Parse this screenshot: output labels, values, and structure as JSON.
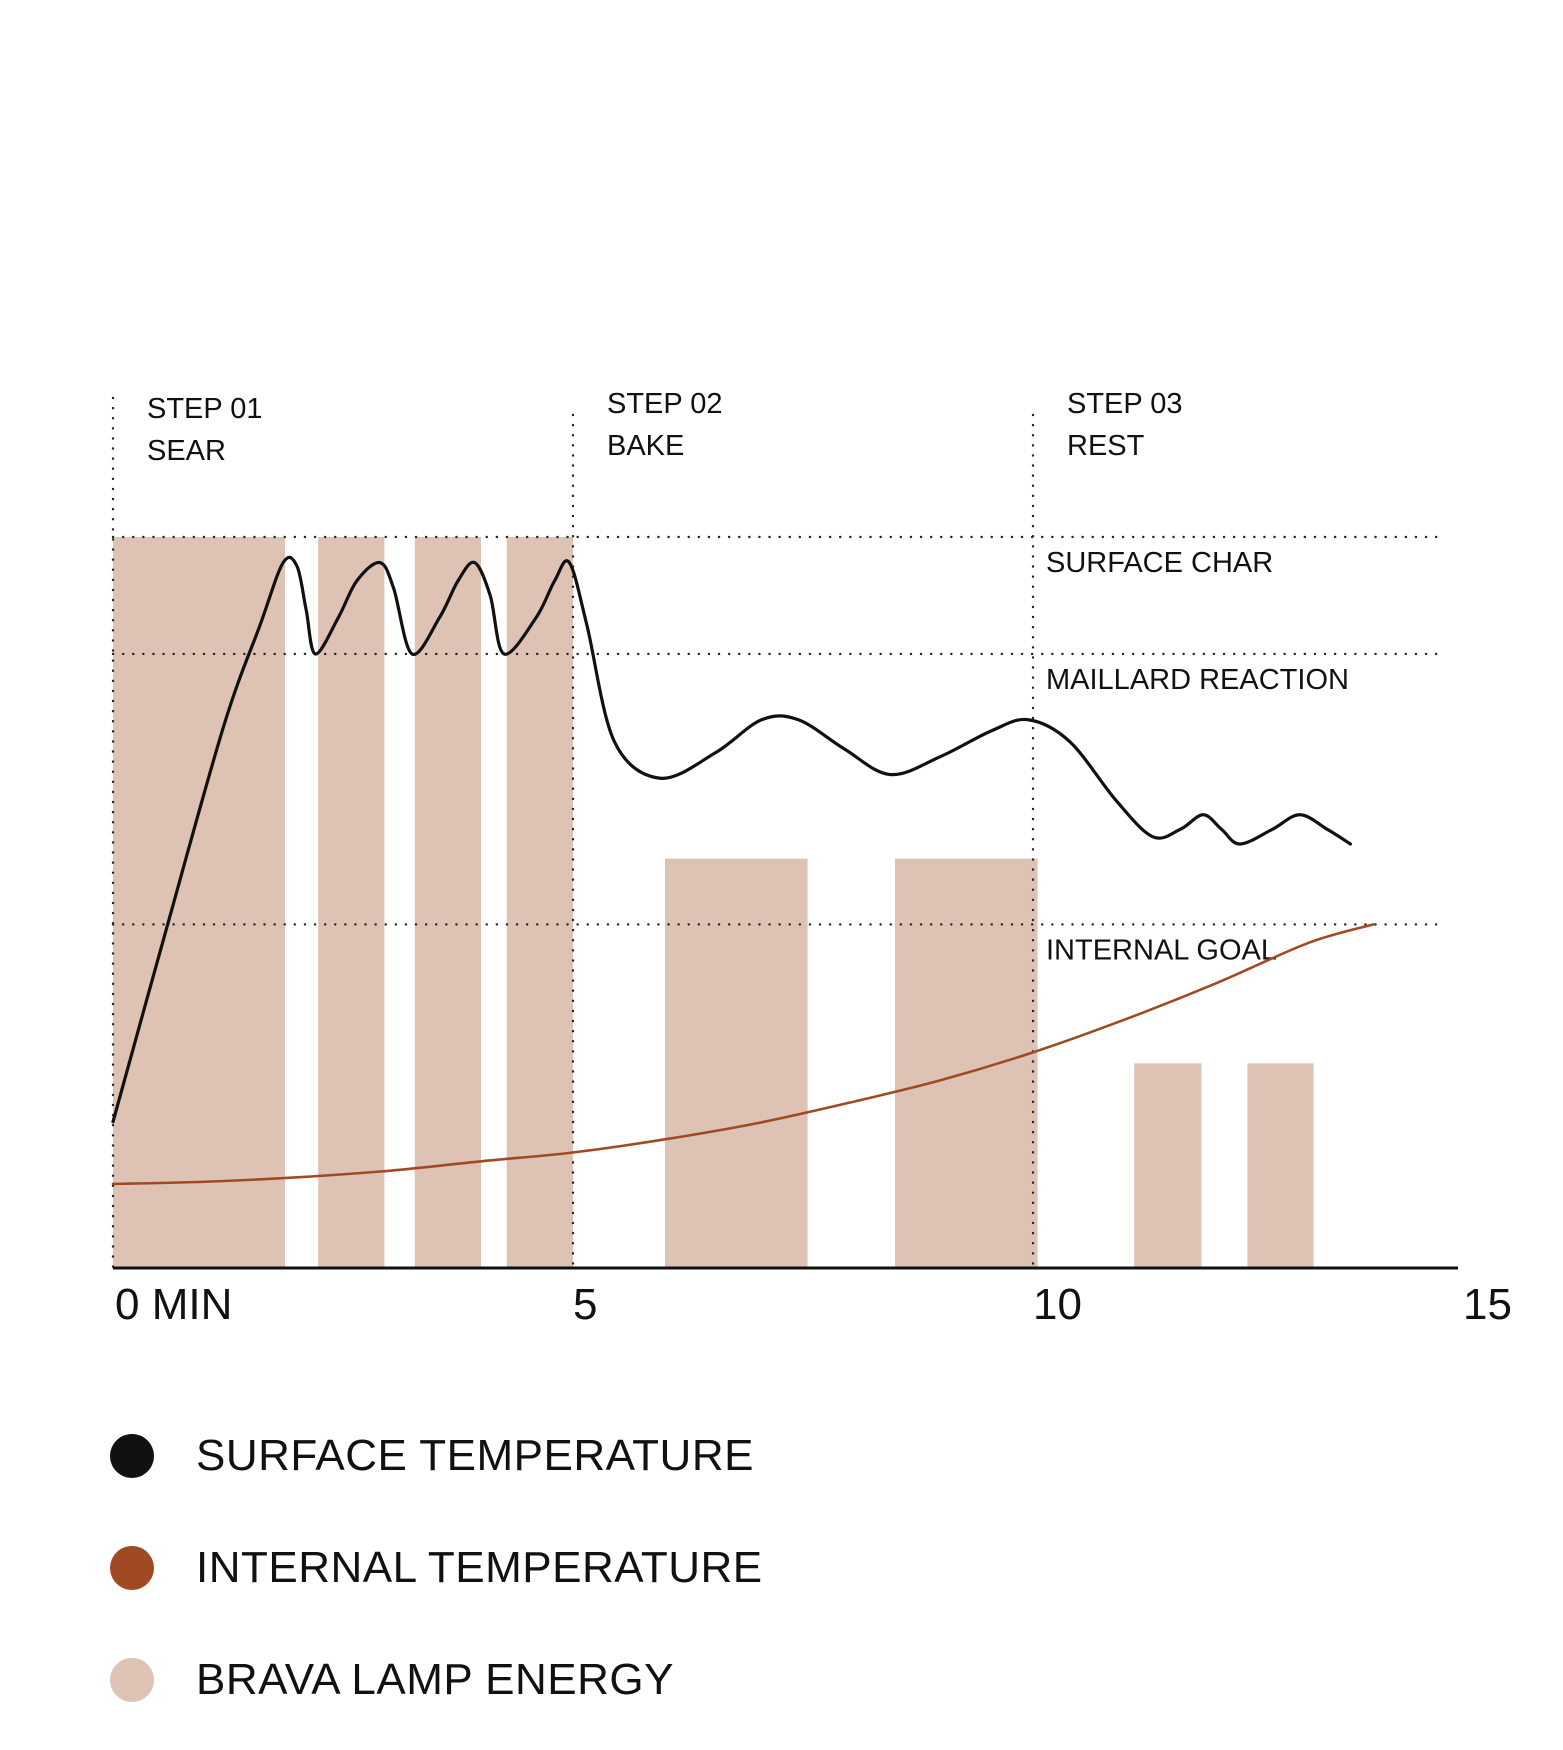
{
  "chart_data": {
    "type": "line",
    "xlim": [
      0,
      15
    ],
    "x_ticks": [
      "0 MIN",
      "5",
      "10",
      "15"
    ],
    "x_tick_values": [
      0,
      5,
      10,
      15
    ],
    "ylim": [
      0,
      100
    ],
    "grid": "dotted",
    "steps": [
      {
        "number": "STEP 01",
        "name": "SEAR",
        "start": 0
      },
      {
        "number": "STEP 02",
        "name": "BAKE",
        "start": 5
      },
      {
        "number": "STEP 03",
        "name": "REST",
        "start": 10
      }
    ],
    "thresholds": [
      {
        "label": "SURFACE CHAR",
        "value": 100
      },
      {
        "label": "MAILLARD REACTION",
        "value": 84
      },
      {
        "label": "INTERNAL GOAL",
        "value": 47
      }
    ],
    "series": [
      {
        "name": "SURFACE TEMPERATURE",
        "type": "line",
        "color": "#111111",
        "points": [
          [
            0,
            20
          ],
          [
            0.55,
            45
          ],
          [
            1.2,
            74
          ],
          [
            1.6,
            88
          ],
          [
            1.85,
            96.5
          ],
          [
            2.0,
            96
          ],
          [
            2.1,
            90
          ],
          [
            2.2,
            84
          ],
          [
            2.45,
            89
          ],
          [
            2.65,
            94
          ],
          [
            2.9,
            96.5
          ],
          [
            3.05,
            93
          ],
          [
            3.25,
            84
          ],
          [
            3.55,
            89
          ],
          [
            3.75,
            94
          ],
          [
            3.93,
            96.5
          ],
          [
            4.1,
            92
          ],
          [
            4.25,
            84
          ],
          [
            4.6,
            89
          ],
          [
            4.8,
            94
          ],
          [
            4.96,
            96.5
          ],
          [
            5.15,
            88
          ],
          [
            5.45,
            72
          ],
          [
            5.95,
            67
          ],
          [
            6.55,
            70.5
          ],
          [
            7.05,
            75
          ],
          [
            7.45,
            75
          ],
          [
            7.95,
            71
          ],
          [
            8.45,
            67.5
          ],
          [
            9.0,
            70
          ],
          [
            9.55,
            73.5
          ],
          [
            9.95,
            75
          ],
          [
            10.4,
            72
          ],
          [
            10.9,
            64
          ],
          [
            11.3,
            59
          ],
          [
            11.6,
            60
          ],
          [
            11.85,
            62
          ],
          [
            12.05,
            60
          ],
          [
            12.25,
            58
          ],
          [
            12.6,
            60
          ],
          [
            12.9,
            62
          ],
          [
            13.2,
            60
          ],
          [
            13.45,
            58
          ]
        ]
      },
      {
        "name": "INTERNAL TEMPERATURE",
        "type": "line",
        "color": "#a04a24",
        "points": [
          [
            0,
            11.5
          ],
          [
            1,
            11.8
          ],
          [
            2,
            12.4
          ],
          [
            3,
            13.3
          ],
          [
            4,
            14.6
          ],
          [
            5,
            15.8
          ],
          [
            6,
            17.6
          ],
          [
            7,
            19.8
          ],
          [
            8,
            22.6
          ],
          [
            9,
            25.7
          ],
          [
            10,
            29.5
          ],
          [
            11,
            34
          ],
          [
            12,
            39
          ],
          [
            13,
            44.5
          ],
          [
            13.7,
            47
          ]
        ]
      },
      {
        "name": "BRAVA LAMP ENERGY",
        "type": "bar",
        "color": "#dec3b5",
        "bars": [
          {
            "start": 0,
            "end": 1.87,
            "value": 100
          },
          {
            "start": 2.23,
            "end": 2.95,
            "value": 100
          },
          {
            "start": 3.28,
            "end": 4.0,
            "value": 100
          },
          {
            "start": 4.28,
            "end": 5.0,
            "value": 100
          },
          {
            "start": 6.0,
            "end": 7.55,
            "value": 56
          },
          {
            "start": 8.5,
            "end": 10.05,
            "value": 56
          },
          {
            "start": 11.1,
            "end": 11.83,
            "value": 28
          },
          {
            "start": 12.33,
            "end": 13.05,
            "value": 28
          }
        ]
      }
    ]
  },
  "legend": {
    "items": [
      {
        "label": "SURFACE TEMPERATURE",
        "color": "#111111"
      },
      {
        "label": "INTERNAL TEMPERATURE",
        "color": "#a04a24"
      },
      {
        "label": "BRAVA LAMP ENERGY",
        "color": "#dec3b5"
      }
    ]
  }
}
